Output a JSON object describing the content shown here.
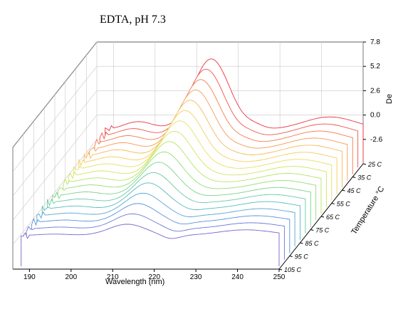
{
  "chart_data": {
    "type": "line",
    "title": "EDTA, pH 7.3",
    "xlabel": "Wavelength (nm)",
    "ylabel": "De",
    "zlabel": "Temperature °C",
    "x_range": [
      186,
      250
    ],
    "x_ticks": [
      "190",
      "200",
      "210",
      "220",
      "230",
      "240",
      "250"
    ],
    "y_range": [
      -5.2,
      7.8
    ],
    "y_ticks": [
      "7.8",
      "5.2",
      "2.6",
      "0.0",
      "-2.6"
    ],
    "temperatures": [
      "25 C",
      "35 C",
      "45 C",
      "55 C",
      "65 C",
      "75 C",
      "85 C",
      "95 C",
      "105 C"
    ],
    "series": [
      {
        "name": "25 C",
        "color": "#e8333f",
        "peak": 7.6,
        "trough": -0.4,
        "shoulder": 1.4
      },
      {
        "name": "30 C",
        "color": "#f0544a",
        "peak": 7.2,
        "trough": -0.35,
        "shoulder": 1.35
      },
      {
        "name": "35 C",
        "color": "#f47a4e",
        "peak": 6.8,
        "trough": -0.3,
        "shoulder": 1.3
      },
      {
        "name": "40 C",
        "color": "#f59a52",
        "peak": 6.4,
        "trough": -0.25,
        "shoulder": 1.25
      },
      {
        "name": "45 C",
        "color": "#f7b856",
        "peak": 6.0,
        "trough": -0.2,
        "shoulder": 1.2
      },
      {
        "name": "50 C",
        "color": "#f5cf5a",
        "peak": 5.6,
        "trough": -0.15,
        "shoulder": 1.15
      },
      {
        "name": "55 C",
        "color": "#eadf5c",
        "peak": 5.2,
        "trough": -0.1,
        "shoulder": 1.1
      },
      {
        "name": "60 C",
        "color": "#d2e560",
        "peak": 4.8,
        "trough": -0.05,
        "shoulder": 1.05
      },
      {
        "name": "65 C",
        "color": "#b4e466",
        "peak": 4.4,
        "trough": 0.0,
        "shoulder": 1.0
      },
      {
        "name": "70 C",
        "color": "#95dd74",
        "peak": 4.0,
        "trough": 0.05,
        "shoulder": 0.95
      },
      {
        "name": "75 C",
        "color": "#7ad38a",
        "peak": 3.6,
        "trough": 0.1,
        "shoulder": 0.9
      },
      {
        "name": "80 C",
        "color": "#66c9a4",
        "peak": 3.2,
        "trough": 0.15,
        "shoulder": 0.85
      },
      {
        "name": "85 C",
        "color": "#58bcc0",
        "peak": 2.8,
        "trough": 0.2,
        "shoulder": 0.8
      },
      {
        "name": "90 C",
        "color": "#55a8d4",
        "peak": 2.4,
        "trough": 0.25,
        "shoulder": 0.75
      },
      {
        "name": "95 C",
        "color": "#5a90dc",
        "peak": 2.0,
        "trough": 0.3,
        "shoulder": 0.7
      },
      {
        "name": "100 C",
        "color": "#6a78da",
        "peak": 1.6,
        "trough": 0.35,
        "shoulder": 0.65
      },
      {
        "name": "105 C",
        "color": "#7a62d0",
        "peak": 1.2,
        "trough": 0.4,
        "shoulder": 0.6
      }
    ]
  }
}
